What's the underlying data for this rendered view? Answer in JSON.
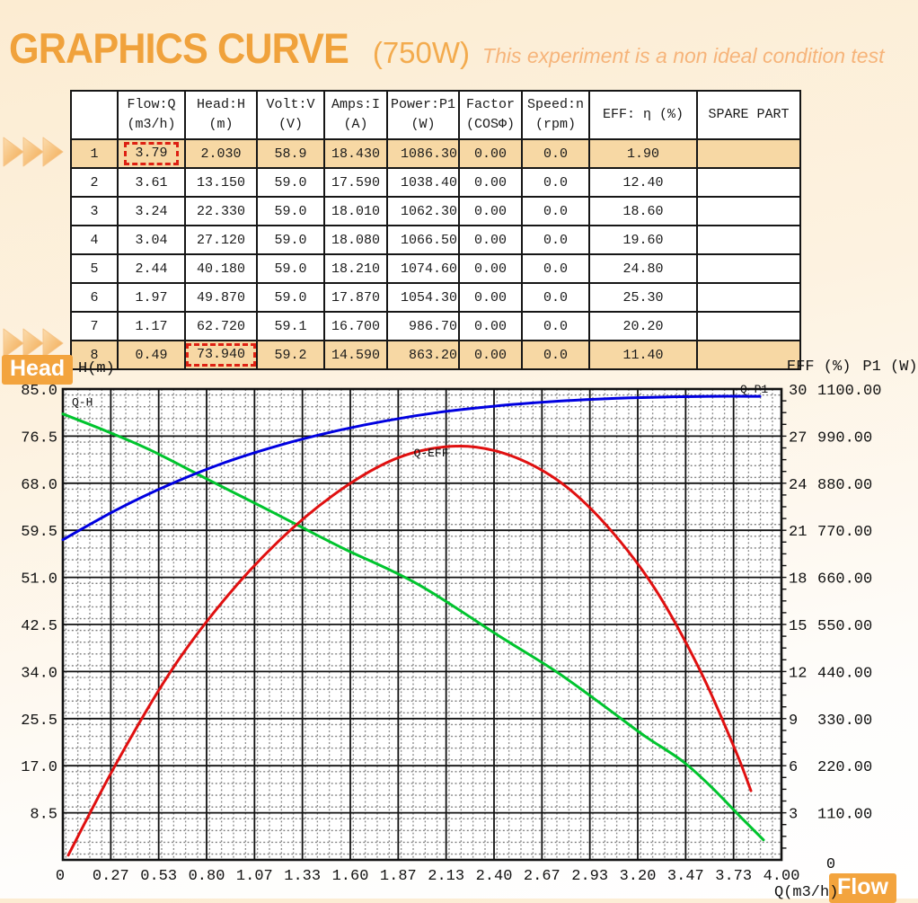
{
  "header": {
    "title": "GRAPHICS CURVE",
    "wattage": "(750W)",
    "subtitle": "This experiment is a non ideal condition test"
  },
  "badges": {
    "head": "Head",
    "flow": "Flow"
  },
  "colors": {
    "accent_orange": "#f0a23c",
    "row_highlight": "#f7d8a4",
    "dashed_box_red": "#dd2012",
    "curve_head_green": "#00c42e",
    "curve_eff_red": "#e01010",
    "curve_p1_blue": "#0000e0"
  },
  "table": {
    "columns": [
      {
        "name": "",
        "unit": ""
      },
      {
        "name": "Flow:Q",
        "unit": "(m3/h)"
      },
      {
        "name": "Head:H",
        "unit": "(m)"
      },
      {
        "name": "Volt:V",
        "unit": "(V)"
      },
      {
        "name": "Amps:I",
        "unit": "(A)"
      },
      {
        "name": "Power:P1",
        "unit": "(W)"
      },
      {
        "name": "Factor",
        "unit": "(COSΦ)"
      },
      {
        "name": "Speed:n",
        "unit": "(rpm)"
      },
      {
        "name": "EFF: η (%)",
        "unit": ""
      },
      {
        "name": "SPARE PART",
        "unit": ""
      }
    ],
    "rows": [
      {
        "no": "1",
        "flow": "3.79",
        "head": "2.030",
        "volt": "58.9",
        "amps": "18.430",
        "power": "1086.30",
        "factor": "0.00",
        "speed": "0.0",
        "eff": "1.90",
        "spare": "",
        "highlight": true,
        "dashed": "flow"
      },
      {
        "no": "2",
        "flow": "3.61",
        "head": "13.150",
        "volt": "59.0",
        "amps": "17.590",
        "power": "1038.40",
        "factor": "0.00",
        "speed": "0.0",
        "eff": "12.40",
        "spare": "",
        "highlight": false,
        "dashed": ""
      },
      {
        "no": "3",
        "flow": "3.24",
        "head": "22.330",
        "volt": "59.0",
        "amps": "18.010",
        "power": "1062.30",
        "factor": "0.00",
        "speed": "0.0",
        "eff": "18.60",
        "spare": "",
        "highlight": false,
        "dashed": ""
      },
      {
        "no": "4",
        "flow": "3.04",
        "head": "27.120",
        "volt": "59.0",
        "amps": "18.080",
        "power": "1066.50",
        "factor": "0.00",
        "speed": "0.0",
        "eff": "19.60",
        "spare": "",
        "highlight": false,
        "dashed": ""
      },
      {
        "no": "5",
        "flow": "2.44",
        "head": "40.180",
        "volt": "59.0",
        "amps": "18.210",
        "power": "1074.60",
        "factor": "0.00",
        "speed": "0.0",
        "eff": "24.80",
        "spare": "",
        "highlight": false,
        "dashed": ""
      },
      {
        "no": "6",
        "flow": "1.97",
        "head": "49.870",
        "volt": "59.0",
        "amps": "17.870",
        "power": "1054.30",
        "factor": "0.00",
        "speed": "0.0",
        "eff": "25.30",
        "spare": "",
        "highlight": false,
        "dashed": ""
      },
      {
        "no": "7",
        "flow": "1.17",
        "head": "62.720",
        "volt": "59.1",
        "amps": "16.700",
        "power": "986.70",
        "factor": "0.00",
        "speed": "0.0",
        "eff": "20.20",
        "spare": "",
        "highlight": false,
        "dashed": ""
      },
      {
        "no": "8",
        "flow": "0.49",
        "head": "73.940",
        "volt": "59.2",
        "amps": "14.590",
        "power": "863.20",
        "factor": "0.00",
        "speed": "0.0",
        "eff": "11.40",
        "spare": "",
        "highlight": true,
        "dashed": "head"
      }
    ]
  },
  "chart_data": {
    "type": "line",
    "title": "",
    "grid": "dotted-dense",
    "x_axis": {
      "label": "Q(m3/h)",
      "min": 0,
      "max": 4,
      "ticks": [
        "0",
        "0.27",
        "0.53",
        "0.80",
        "1.07",
        "1.33",
        "1.60",
        "1.87",
        "2.13",
        "2.40",
        "2.67",
        "2.93",
        "3.20",
        "3.47",
        "3.73",
        "4.00"
      ]
    },
    "y_axis_left": {
      "label": "H(m)",
      "min": 0,
      "max": 85,
      "ticks": [
        "85.0",
        "76.5",
        "68.0",
        "59.5",
        "51.0",
        "42.5",
        "34.0",
        "25.5",
        "17.0",
        "8.5"
      ]
    },
    "y_axis_right_eff": {
      "label": "EFF (%)",
      "min": 0,
      "max": 30,
      "ticks": [
        "30",
        "27",
        "24",
        "21",
        "18",
        "15",
        "12",
        "9",
        "6",
        "3"
      ]
    },
    "y_axis_right_p1": {
      "label": "P1 (W)",
      "min": 0,
      "max": 1100,
      "ticks": [
        "1100.00",
        "990.00",
        "880.00",
        "770.00",
        "660.00",
        "550.00",
        "440.00",
        "330.00",
        "220.00",
        "110.00",
        "0"
      ]
    },
    "measured_points": {
      "note_source": "table rows 1-8",
      "Q": [
        0.49,
        1.17,
        1.97,
        2.44,
        3.04,
        3.24,
        3.61,
        3.79
      ],
      "H": [
        73.94,
        62.72,
        49.87,
        40.18,
        27.12,
        22.33,
        13.15,
        2.03
      ],
      "EFF": [
        11.4,
        20.2,
        25.3,
        24.8,
        19.6,
        18.6,
        12.4,
        1.9
      ],
      "P1": [
        863.2,
        986.7,
        1054.3,
        1074.6,
        1066.5,
        1062.3,
        1038.4,
        1086.3
      ]
    },
    "series": [
      {
        "name": "Q-H",
        "axis": "left",
        "color": "#00c42e",
        "points": [
          [
            0,
            80.5
          ],
          [
            0.25,
            77.3
          ],
          [
            0.49,
            73.94
          ],
          [
            0.8,
            68.8
          ],
          [
            1.17,
            62.72
          ],
          [
            1.55,
            56.4
          ],
          [
            1.97,
            49.87
          ],
          [
            2.44,
            40.18
          ],
          [
            2.75,
            33.9
          ],
          [
            3.04,
            27.12
          ],
          [
            3.24,
            22.33
          ],
          [
            3.45,
            17.8
          ],
          [
            3.61,
            13.15
          ],
          [
            3.78,
            7.5
          ],
          [
            3.9,
            3.6
          ]
        ],
        "label": "Q-H",
        "label_at": [
          0.05,
          82.0
        ],
        "label_anchor": "start"
      },
      {
        "name": "Q-EFF",
        "axis": "eff",
        "color": "#e01010",
        "points": [
          [
            0.03,
            0.3
          ],
          [
            0.3,
            6.2
          ],
          [
            0.6,
            12.0
          ],
          [
            0.9,
            16.6
          ],
          [
            1.2,
            20.3
          ],
          [
            1.5,
            23.2
          ],
          [
            1.8,
            25.3
          ],
          [
            2.05,
            26.2
          ],
          [
            2.3,
            26.3
          ],
          [
            2.55,
            25.5
          ],
          [
            2.8,
            23.8
          ],
          [
            3.05,
            21.0
          ],
          [
            3.3,
            17.2
          ],
          [
            3.55,
            12.0
          ],
          [
            3.75,
            6.8
          ],
          [
            3.83,
            4.4
          ]
        ],
        "label": "Q-EFF",
        "label_at": [
          2.05,
          25.7
        ],
        "label_anchor": "middle"
      },
      {
        "name": "Q-P1",
        "axis": "p1",
        "color": "#0000e0",
        "points": [
          [
            0,
            748
          ],
          [
            0.3,
            818
          ],
          [
            0.6,
            878
          ],
          [
            0.9,
            928
          ],
          [
            1.2,
            968
          ],
          [
            1.5,
            1000
          ],
          [
            1.8,
            1026
          ],
          [
            2.1,
            1046
          ],
          [
            2.4,
            1060
          ],
          [
            2.7,
            1070
          ],
          [
            3.0,
            1077
          ],
          [
            3.3,
            1081
          ],
          [
            3.6,
            1083
          ],
          [
            3.88,
            1083
          ]
        ],
        "label": "Q-P1",
        "label_at": [
          3.77,
          1092
        ],
        "label_anchor": "start"
      }
    ]
  }
}
